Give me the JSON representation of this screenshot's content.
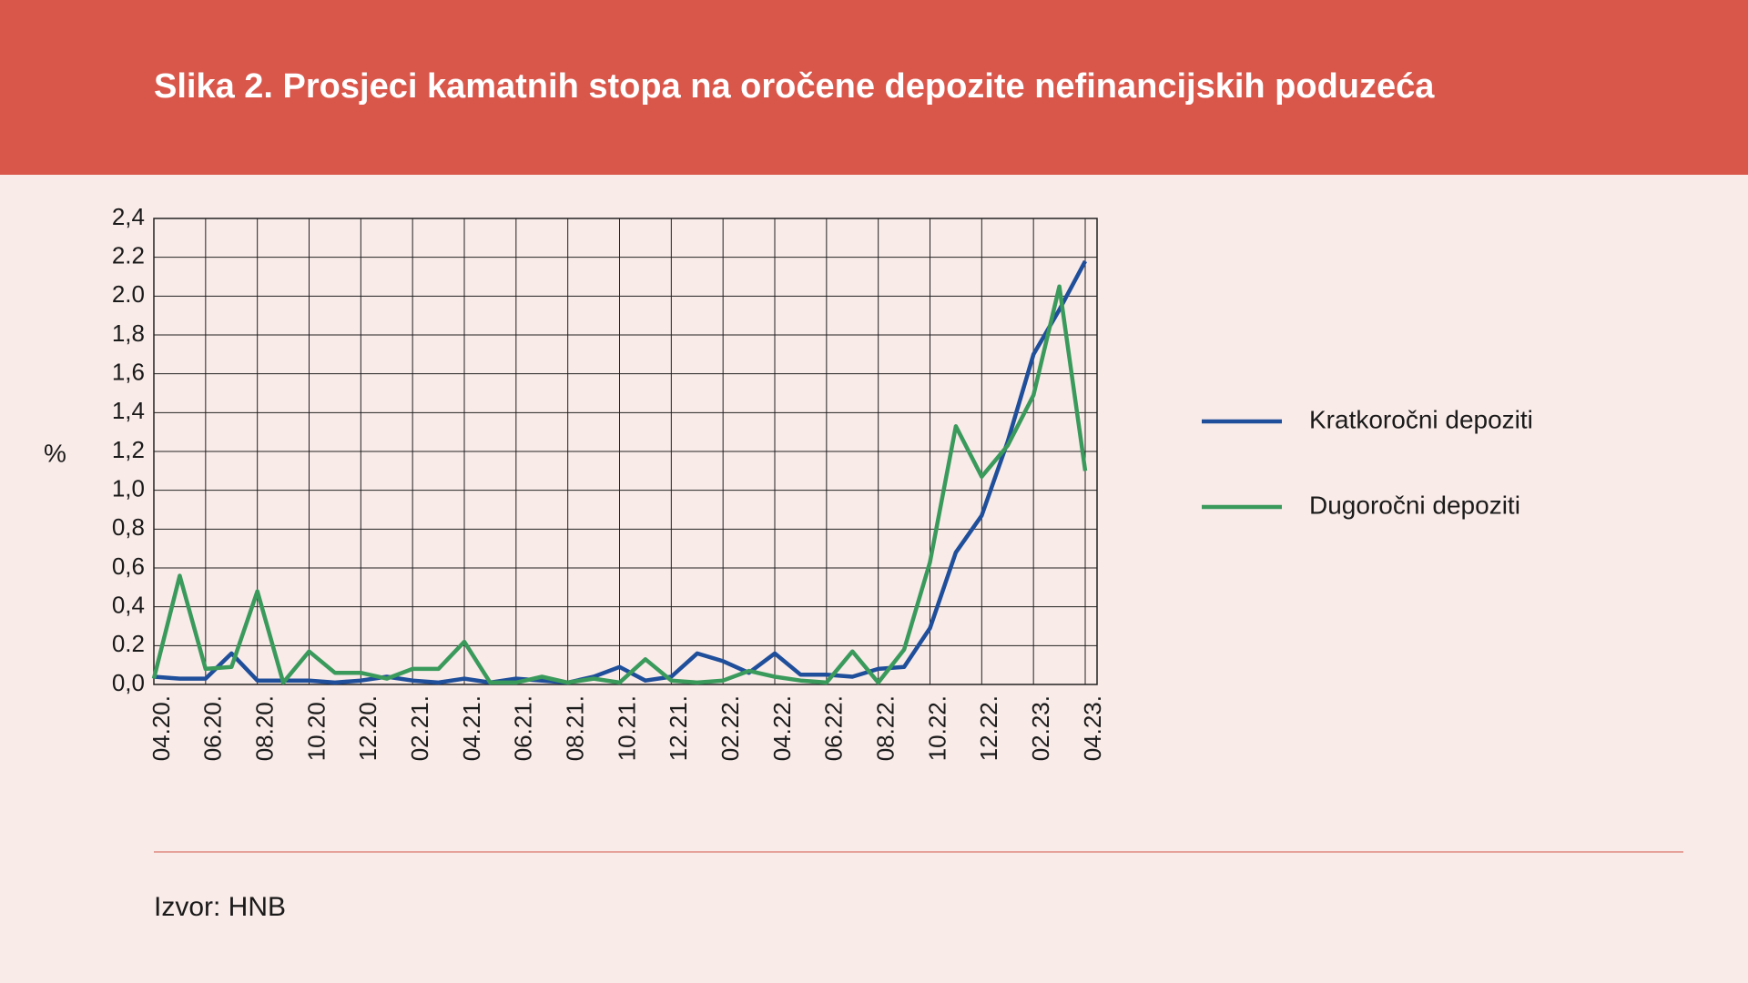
{
  "chart_data": {
    "type": "line",
    "title": "Slika 2. Prosjeci kamatnih stopa na oročene depozite nefinancijskih poduzeća",
    "ylabel": "%",
    "categories": [
      "04.20.",
      null,
      "06.20.",
      null,
      "08.20.",
      null,
      "10.20.",
      null,
      "12.20.",
      null,
      "02.21.",
      null,
      "04.21.",
      null,
      "06.21.",
      null,
      "08.21.",
      null,
      "10.21.",
      null,
      "12.21.",
      null,
      "02.22.",
      null,
      "04.22.",
      null,
      "06.22.",
      null,
      "08.22.",
      null,
      "10.22.",
      null,
      "12.22.",
      null,
      "02.23.",
      null,
      "04.23."
    ],
    "series": [
      {
        "name": "Kratkoročni depoziti",
        "color": "#1f4e9a",
        "values": [
          0.04,
          0.03,
          0.03,
          0.16,
          0.02,
          0.02,
          0.02,
          0.01,
          0.02,
          0.04,
          0.02,
          0.01,
          0.03,
          0.01,
          0.03,
          0.02,
          0.01,
          0.04,
          0.09,
          0.02,
          0.04,
          0.16,
          0.12,
          0.06,
          0.16,
          0.05,
          0.05,
          0.04,
          0.08,
          0.09,
          0.29,
          0.68,
          0.87,
          1.25,
          1.7,
          1.93,
          2.18
        ]
      },
      {
        "name": "Dugoročni depoziti",
        "color": "#3a9a5c",
        "values": [
          0.03,
          0.56,
          0.08,
          0.09,
          0.48,
          0.01,
          0.17,
          0.06,
          0.06,
          0.03,
          0.08,
          0.08,
          0.22,
          0.01,
          0.01,
          0.04,
          0.01,
          0.03,
          0.01,
          0.13,
          0.02,
          0.01,
          0.02,
          0.07,
          0.04,
          0.02,
          0.01,
          0.17,
          0.01,
          0.18,
          0.63,
          1.33,
          1.07,
          1.23,
          1.49,
          2.05,
          1.1
        ]
      }
    ],
    "ylim": [
      0,
      2.4
    ],
    "yticks": [
      {
        "value": 0,
        "label": "0,0"
      },
      {
        "value": 0.2,
        "label": "0.2"
      },
      {
        "value": 0.4,
        "label": "0,4"
      },
      {
        "value": 0.6,
        "label": "0,6"
      },
      {
        "value": 0.8,
        "label": "0,8"
      },
      {
        "value": 1.0,
        "label": "1,0"
      },
      {
        "value": 1.2,
        "label": "1,2"
      },
      {
        "value": 1.4,
        "label": "1,4"
      },
      {
        "value": 1.6,
        "label": "1,6"
      },
      {
        "value": 1.8,
        "label": "1,8"
      },
      {
        "value": 2.0,
        "label": "2.0"
      },
      {
        "value": 2.2,
        "label": "2.2"
      },
      {
        "value": 2.4,
        "label": "2,4"
      }
    ],
    "grid": true,
    "legend": "right"
  },
  "source": "Izvor: HNB"
}
